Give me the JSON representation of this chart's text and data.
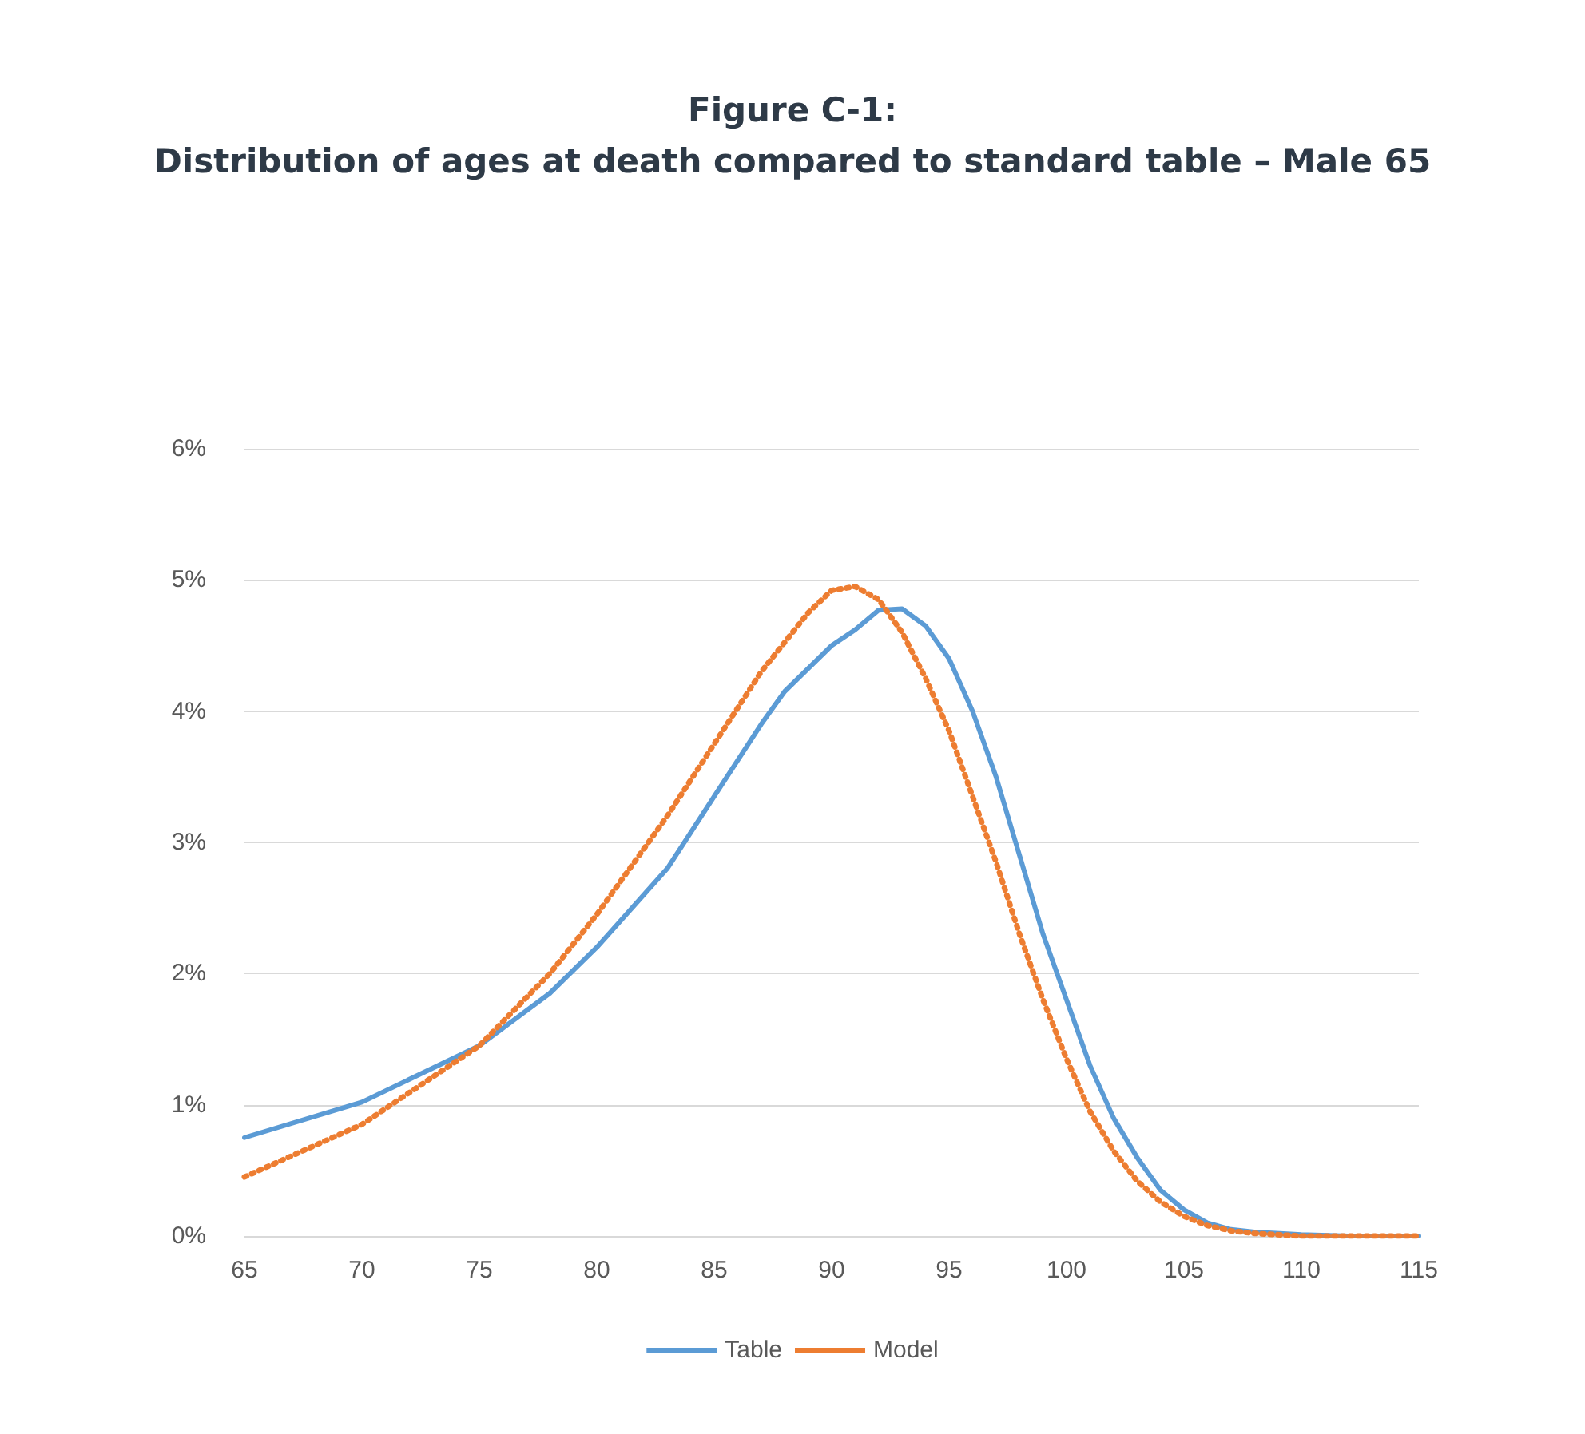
{
  "chart_data": {
    "type": "line",
    "title": "Figure C-1:\nDistribution of ages at death compared to standard table – Male 65",
    "xlim": [
      65,
      115
    ],
    "xticks": [
      65,
      70,
      75,
      80,
      85,
      90,
      95,
      100,
      105,
      110,
      115
    ],
    "ylim": [
      0,
      6
    ],
    "yticks": [
      {
        "value": 0,
        "label": "0%"
      },
      {
        "value": 1,
        "label": "1%"
      },
      {
        "value": 2,
        "label": "2%"
      },
      {
        "value": 3,
        "label": "3%"
      },
      {
        "value": 4,
        "label": "4%"
      },
      {
        "value": 5,
        "label": "5%"
      },
      {
        "value": 6,
        "label": "6%"
      }
    ],
    "grid": "y",
    "legend": "bottom",
    "marker": "none",
    "series": [
      {
        "name": "Table",
        "color": "#5b9bd5",
        "line_style": "solid",
        "x": [
          65,
          70,
          75,
          78,
          80,
          83,
          85,
          87,
          88,
          90,
          91,
          92,
          93,
          94,
          95,
          96,
          97,
          98,
          99,
          100,
          101,
          102,
          103,
          104,
          105,
          106,
          107,
          108,
          110,
          112,
          115
        ],
        "values": [
          0.75,
          1.02,
          1.45,
          1.85,
          2.2,
          2.8,
          3.35,
          3.9,
          4.15,
          4.5,
          4.62,
          4.77,
          4.78,
          4.65,
          4.4,
          4.0,
          3.5,
          2.9,
          2.3,
          1.8,
          1.3,
          0.9,
          0.6,
          0.35,
          0.2,
          0.1,
          0.05,
          0.03,
          0.01,
          0,
          0
        ]
      },
      {
        "name": "Model",
        "color": "#ed7d31",
        "line_style": "dotted",
        "x": [
          65,
          70,
          75,
          78,
          80,
          83,
          85,
          87,
          89,
          90,
          91,
          92,
          93,
          94,
          95,
          96,
          97,
          98,
          99,
          100,
          101,
          102,
          103,
          104,
          105,
          106,
          107,
          108,
          110,
          115
        ],
        "values": [
          0.45,
          0.85,
          1.45,
          2.0,
          2.45,
          3.2,
          3.75,
          4.3,
          4.75,
          4.92,
          4.95,
          4.85,
          4.6,
          4.25,
          3.85,
          3.35,
          2.85,
          2.3,
          1.8,
          1.35,
          0.95,
          0.65,
          0.42,
          0.26,
          0.15,
          0.08,
          0.04,
          0.02,
          0,
          0
        ]
      }
    ]
  }
}
